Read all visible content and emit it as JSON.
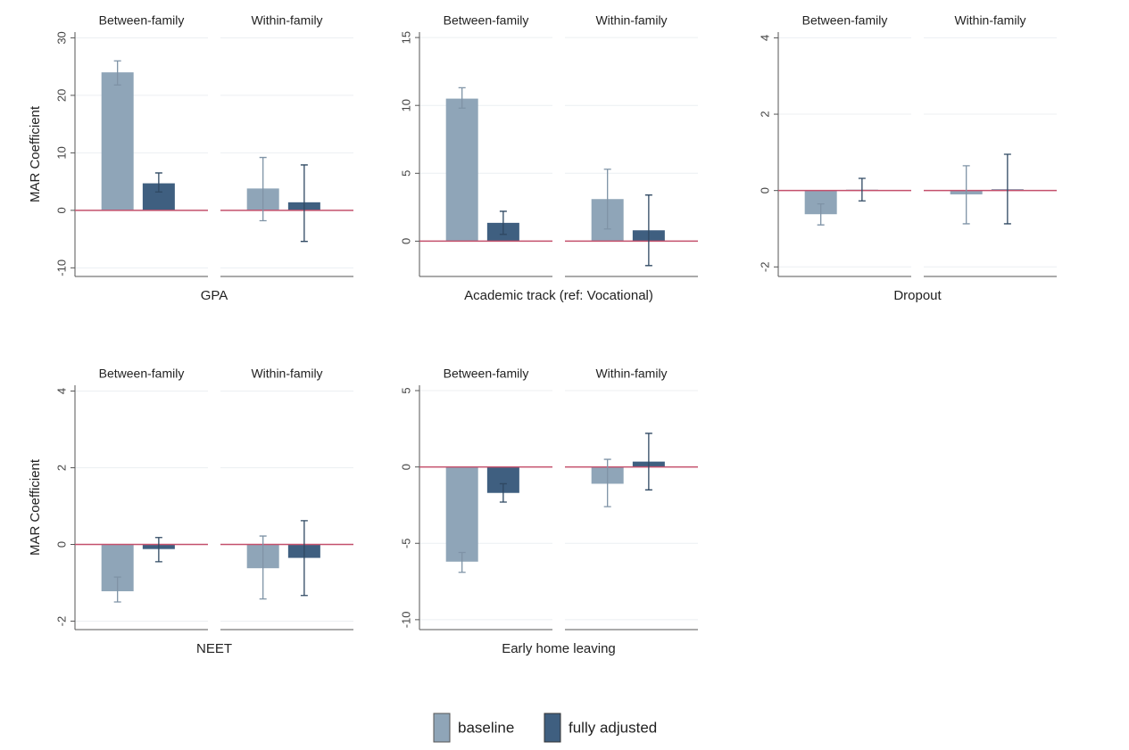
{
  "chart_data": [
    {
      "type": "bar",
      "xlabel": "GPA",
      "ylabel": "MAR Coefficient",
      "categories": [
        "Between-family",
        "Within-family"
      ],
      "series": [
        {
          "values": [
            24,
            3.8
          ],
          "lower": [
            21.8,
            -1.8
          ],
          "upper": [
            26,
            9.2
          ]
        },
        {
          "values": [
            4.7,
            1.4
          ],
          "lower": [
            3.2,
            -5.4
          ],
          "upper": [
            6.5,
            7.9
          ]
        }
      ],
      "ylim": [
        -11.5,
        31
      ],
      "yticks": [
        -10,
        0,
        10,
        20,
        30
      ],
      "refline": 0,
      "grid": true
    },
    {
      "type": "bar",
      "xlabel": "Academic track (ref: Vocational)",
      "categories": [
        "Between-family",
        "Within-family"
      ],
      "series": [
        {
          "values": [
            10.5,
            3.1
          ],
          "lower": [
            9.8,
            0.9
          ],
          "upper": [
            11.3,
            5.3
          ]
        },
        {
          "values": [
            1.35,
            0.8
          ],
          "lower": [
            0.5,
            -1.8
          ],
          "upper": [
            2.2,
            3.4
          ]
        }
      ],
      "ylim": [
        -2.6,
        15.4
      ],
      "yticks": [
        0,
        5,
        10,
        15
      ],
      "refline": 0,
      "grid": true
    },
    {
      "type": "bar",
      "xlabel": "Dropout",
      "categories": [
        "Between-family",
        "Within-family"
      ],
      "series": [
        {
          "values": [
            -0.62,
            -0.1
          ],
          "lower": [
            -0.9,
            -0.87
          ],
          "upper": [
            -0.35,
            0.65
          ]
        },
        {
          "values": [
            0.02,
            0.03
          ],
          "lower": [
            -0.27,
            -0.87
          ],
          "upper": [
            0.32,
            0.95
          ]
        }
      ],
      "ylim": [
        -2.25,
        4.15
      ],
      "yticks": [
        -2,
        0,
        2,
        4
      ],
      "refline": 0,
      "grid": true
    },
    {
      "type": "bar",
      "xlabel": "NEET",
      "ylabel": "MAR Coefficient",
      "categories": [
        "Between-family",
        "Within-family"
      ],
      "series": [
        {
          "values": [
            -1.22,
            -0.62
          ],
          "lower": [
            -1.5,
            -1.42
          ],
          "upper": [
            -0.85,
            0.22
          ]
        },
        {
          "values": [
            -0.12,
            -0.35
          ],
          "lower": [
            -0.45,
            -1.33
          ],
          "upper": [
            0.18,
            0.62
          ]
        }
      ],
      "ylim": [
        -2.22,
        4.15
      ],
      "yticks": [
        -2,
        0,
        2,
        4
      ],
      "refline": 0,
      "grid": true
    },
    {
      "type": "bar",
      "xlabel": "Early home leaving",
      "categories": [
        "Between-family",
        "Within-family"
      ],
      "series": [
        {
          "values": [
            -6.2,
            -1.1
          ],
          "lower": [
            -6.9,
            -2.6
          ],
          "upper": [
            -5.6,
            0.5
          ]
        },
        {
          "values": [
            -1.7,
            0.35
          ],
          "lower": [
            -2.3,
            -1.5
          ],
          "upper": [
            -1.1,
            2.2
          ]
        }
      ],
      "ylim": [
        -10.65,
        5.35
      ],
      "yticks": [
        -10,
        -5,
        0,
        5
      ],
      "refline": 0,
      "grid": true
    }
  ],
  "legend": {
    "series": [
      {
        "name": "baseline",
        "color": "#8fa5b8",
        "error_color": "#7f93a6"
      },
      {
        "name": "fully adjusted",
        "color": "#3f5f80",
        "error_color": "#2f4862"
      }
    ]
  }
}
